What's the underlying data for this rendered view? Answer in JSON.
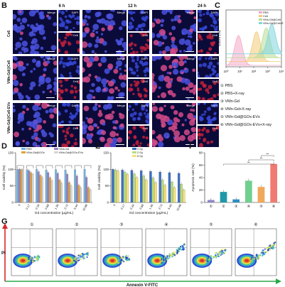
{
  "panels": {
    "B": {
      "letter": "B",
      "time_headers": [
        "6 h",
        "12 h",
        "24 h"
      ],
      "rows": [
        "Ce6",
        "VMn-Gd@Ce6",
        "VMn-Gd@Ce6-EVs"
      ],
      "merge_label": "Merge",
      "dapi_label": "DAPI",
      "ce6_label": "Ce6"
    },
    "C": {
      "letter": "C",
      "ylabel": "Count (%)",
      "x_ticks": [
        "10⁰",
        "10¹",
        "10²",
        "10³",
        "10⁴"
      ],
      "legend": [
        "PBS",
        "Ce6",
        "VMn-Gd@Ce6",
        "VMn-Gd@Ce6-EVs"
      ]
    },
    "groups": {
      "title": "",
      "items": [
        "① PBS",
        "② PBS+X-ray",
        "③ VMn-Gd",
        "④ VMn-Gd+X-ray",
        "⑤ VMn-Gd@GOx-EVs",
        "⑥ VMn-Gd@GOx-EVs+X-ray"
      ]
    },
    "D": {
      "letter": "D"
    },
    "E": {
      "letter": "E"
    },
    "F": {
      "letter": "F"
    },
    "G": {
      "letter": "G",
      "numbers": [
        "①",
        "②",
        "③",
        "④",
        "⑤",
        "⑥"
      ],
      "ylabel": "PI",
      "xlabel": "Annexin V-FITC"
    }
  },
  "chart_data": [
    {
      "panel": "D",
      "type": "bar",
      "ylabel": "Cell viability (%)",
      "xlabel": "Gd concentration (μg/mL)",
      "ylim": [
        0,
        150
      ],
      "yticks": [
        0,
        50,
        100,
        150
      ],
      "categories": [
        "0",
        "0.17",
        "0.34",
        "0.68",
        "1.36",
        "2.72",
        "5.44",
        "10.88"
      ],
      "series": [
        {
          "name": "PBS",
          "color": "#6fb3e0",
          "values": [
            100,
            99,
            100,
            98,
            99,
            98,
            99,
            100
          ]
        },
        {
          "name": "VMn-Gd",
          "color": "#9b80c0",
          "values": [
            100,
            96,
            93,
            90,
            88,
            85,
            80,
            76
          ]
        },
        {
          "name": "VMn-Gd@GOx",
          "color": "#e2a23b",
          "values": [
            99,
            90,
            82,
            75,
            68,
            60,
            52,
            45
          ]
        },
        {
          "name": "VMn-Gd@GOx-EVs",
          "color": "#d7d7d7",
          "values": [
            100,
            85,
            75,
            65,
            58,
            50,
            44,
            38
          ]
        }
      ]
    },
    {
      "panel": "E",
      "type": "bar",
      "ylabel": "Cell viability (%)",
      "xlabel": "Gd concentration (μg/mL)",
      "ylim": [
        0,
        150
      ],
      "yticks": [
        0,
        50,
        100,
        150
      ],
      "categories": [
        "0",
        "0.17",
        "0.34",
        "0.68",
        "1.36",
        "2.72",
        "5.44",
        "10.88"
      ],
      "series": [
        {
          "name": "0 Gy",
          "color": "#3c6fc4",
          "values": [
            100,
            98,
            97,
            96,
            94,
            92,
            90,
            88
          ]
        },
        {
          "name": "2 Gy",
          "color": "#b9dd7a",
          "values": [
            98,
            92,
            86,
            80,
            74,
            68,
            62,
            55
          ]
        },
        {
          "name": "6 Gy",
          "color": "#f5e27a",
          "values": [
            95,
            85,
            75,
            68,
            60,
            52,
            45,
            38
          ]
        }
      ]
    },
    {
      "panel": "F",
      "type": "bar",
      "ylabel": "Apoptosis rate (%)",
      "ylim": [
        0,
        80
      ],
      "yticks": [
        0,
        20,
        40,
        60,
        80
      ],
      "categories": [
        "①",
        "②",
        "③",
        "④",
        "⑤",
        "⑥"
      ],
      "values": [
        4,
        17,
        5,
        35,
        25,
        62
      ],
      "colors": [
        "#8f86c8",
        "#1f98a8",
        "#2c8ec2",
        "#6fcf8f",
        "#f0a85a",
        "#f07b72"
      ],
      "annotations": [
        "**",
        "**",
        "**"
      ]
    },
    {
      "panel": "C",
      "type": "area",
      "series": [
        {
          "name": "PBS",
          "color": "#f4a9c8",
          "peak_log": 0.9
        },
        {
          "name": "Ce6",
          "color": "#f2cb7a",
          "peak_log": 2.2
        },
        {
          "name": "VMn-Gd@Ce6",
          "color": "#b9dd95",
          "peak_log": 2.9
        },
        {
          "name": "VMn-Gd@Ce6-EVs",
          "color": "#7fd6dc",
          "peak_log": 3.3
        }
      ]
    }
  ]
}
